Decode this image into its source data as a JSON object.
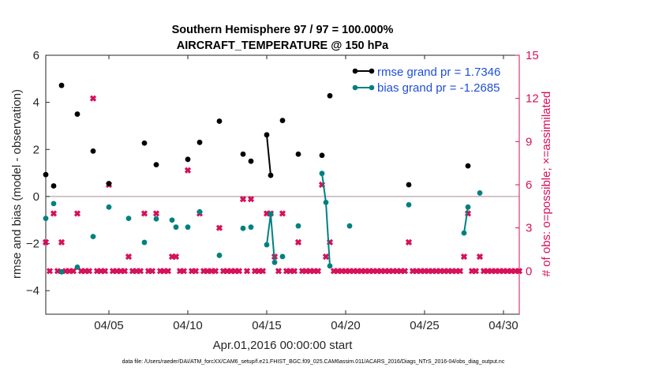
{
  "chart_data": {
    "type": "scatter",
    "title": "Southern Hemisphere 97 / 97 = 100.000%",
    "subtitle": "AIRCRAFT_TEMPERATURE @ 150 hPa",
    "xlabel": "Apr.01,2016 00:00:00 start",
    "ylabel_left": "rmse and bias (model - observation)",
    "ylabel_right": "# of obs: o=possible; ×=assimilated",
    "xlim": [
      1,
      31
    ],
    "ylim_left": [
      -5,
      6
    ],
    "ylim_right": [
      -3,
      15
    ],
    "xticks": [
      {
        "value": 5,
        "label": "04/05"
      },
      {
        "value": 10,
        "label": "04/10"
      },
      {
        "value": 15,
        "label": "04/15"
      },
      {
        "value": 20,
        "label": "04/20"
      },
      {
        "value": 25,
        "label": "04/25"
      },
      {
        "value": 30,
        "label": "04/30"
      }
    ],
    "yticks_left": [
      -4,
      -2,
      0,
      2,
      4,
      6
    ],
    "yticks_right": [
      0,
      3,
      6,
      9,
      12,
      15
    ],
    "zero_line": 0,
    "legend": {
      "placement": "top-right",
      "entries": [
        "rmse grand pr = 1.7346",
        "bias grand pr = -1.2685"
      ]
    },
    "colors": {
      "rmse": "#000000",
      "bias": "#008080",
      "obs": "#d6105a",
      "zero_line": "#b9a3b0",
      "legend_text": "#1f4fd8"
    },
    "series": [
      {
        "name": "rmse",
        "points": [
          {
            "x": 1,
            "y": 0.93
          },
          {
            "x": 1.5,
            "y": 0.45
          },
          {
            "x": 2,
            "y": 4.72
          },
          {
            "x": 3,
            "y": 3.5
          },
          {
            "x": 4,
            "y": 1.93
          },
          {
            "x": 5,
            "y": 0.55
          },
          {
            "x": 7.25,
            "y": 2.27
          },
          {
            "x": 8,
            "y": 1.35
          },
          {
            "x": 10,
            "y": 1.58
          },
          {
            "x": 10.75,
            "y": 2.3
          },
          {
            "x": 12,
            "y": 3.2
          },
          {
            "x": 13.5,
            "y": 1.8
          },
          {
            "x": 14,
            "y": 1.5
          },
          {
            "x": 15,
            "y": 2.62
          },
          {
            "x": 15.25,
            "y": 0.9
          },
          {
            "x": 16,
            "y": 3.23
          },
          {
            "x": 17,
            "y": 1.8
          },
          {
            "x": 18.5,
            "y": 1.75
          },
          {
            "x": 19,
            "y": 4.28
          },
          {
            "x": 24,
            "y": 0.5
          },
          {
            "x": 27.75,
            "y": 1.3
          }
        ],
        "connected": [
          [
            15,
            15.25
          ]
        ]
      },
      {
        "name": "bias",
        "points": [
          {
            "x": 1,
            "y": -0.93
          },
          {
            "x": 1.5,
            "y": -0.3
          },
          {
            "x": 2,
            "y": -3.2
          },
          {
            "x": 3,
            "y": -3.0
          },
          {
            "x": 4,
            "y": -1.7
          },
          {
            "x": 5,
            "y": -0.45
          },
          {
            "x": 6.25,
            "y": -0.93
          },
          {
            "x": 7.25,
            "y": -1.95
          },
          {
            "x": 8,
            "y": -0.95
          },
          {
            "x": 9,
            "y": -1.0
          },
          {
            "x": 9.25,
            "y": -1.3
          },
          {
            "x": 10,
            "y": -1.3
          },
          {
            "x": 10.75,
            "y": -0.65
          },
          {
            "x": 12,
            "y": -2.5
          },
          {
            "x": 13.5,
            "y": -1.35
          },
          {
            "x": 14,
            "y": -1.3
          },
          {
            "x": 15,
            "y": -2.05
          },
          {
            "x": 15.25,
            "y": -0.75
          },
          {
            "x": 15.5,
            "y": -2.8
          },
          {
            "x": 16,
            "y": -2.55
          },
          {
            "x": 17,
            "y": -1.25
          },
          {
            "x": 18.5,
            "y": 0.98
          },
          {
            "x": 18.75,
            "y": -0.25
          },
          {
            "x": 19,
            "y": -2.95
          },
          {
            "x": 20.25,
            "y": -1.25
          },
          {
            "x": 24,
            "y": -0.35
          },
          {
            "x": 27.5,
            "y": -1.55
          },
          {
            "x": 27.75,
            "y": -0.45
          },
          {
            "x": 28.5,
            "y": 0.15
          }
        ],
        "connected": [
          [
            15,
            15.25,
            15.5
          ],
          [
            18.5,
            18.75,
            19
          ],
          [
            27.5,
            27.75
          ]
        ]
      },
      {
        "name": "obs",
        "axis": "right",
        "nonzero": [
          {
            "x": 1,
            "y": 2
          },
          {
            "x": 1.5,
            "y": 4
          },
          {
            "x": 2,
            "y": 2
          },
          {
            "x": 3,
            "y": 4
          },
          {
            "x": 4,
            "y": 12
          },
          {
            "x": 5,
            "y": 6
          },
          {
            "x": 6.25,
            "y": 1
          },
          {
            "x": 7.25,
            "y": 4
          },
          {
            "x": 8,
            "y": 4
          },
          {
            "x": 9,
            "y": 1
          },
          {
            "x": 9.25,
            "y": 1
          },
          {
            "x": 10,
            "y": 7
          },
          {
            "x": 10.75,
            "y": 4
          },
          {
            "x": 12,
            "y": 3
          },
          {
            "x": 13.5,
            "y": 5
          },
          {
            "x": 14,
            "y": 5
          },
          {
            "x": 15,
            "y": 4
          },
          {
            "x": 15.25,
            "y": 4
          },
          {
            "x": 15.5,
            "y": 1
          },
          {
            "x": 16,
            "y": 4
          },
          {
            "x": 17,
            "y": 2
          },
          {
            "x": 18.5,
            "y": 6
          },
          {
            "x": 18.75,
            "y": 1
          },
          {
            "x": 19,
            "y": 2
          },
          {
            "x": 24,
            "y": 2
          },
          {
            "x": 27.5,
            "y": 1
          },
          {
            "x": 27.75,
            "y": 4
          },
          {
            "x": 28.5,
            "y": 1
          }
        ],
        "zero_x_start": 1,
        "zero_x_end": 31,
        "zero_x_step": 0.25
      }
    ]
  },
  "footer": "data file: /Users/raeder/DAI/ATM_forcXX/CAM6_setup/f.e21.FHIST_BGC.f09_025.CAM6assim.011/ACARS_2016/Diags_NTrS_2016-04/obs_diag_output.nc"
}
